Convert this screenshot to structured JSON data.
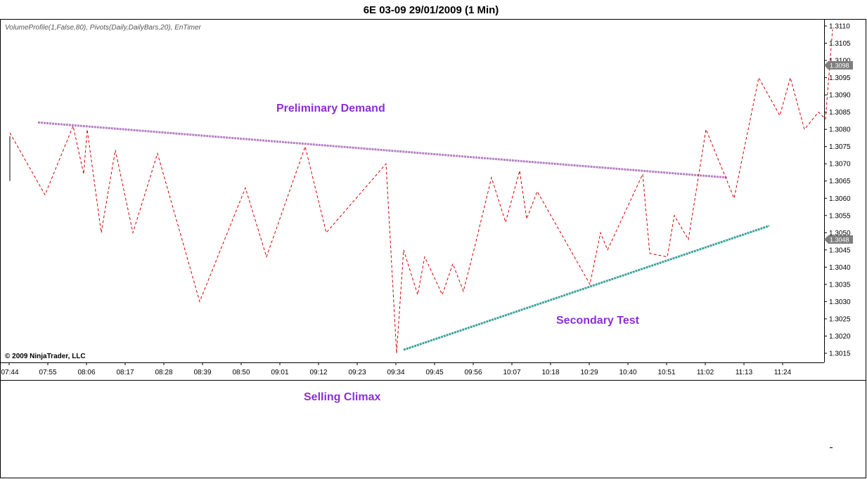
{
  "header": {
    "title": "6E 03-09  29/01/2009 (1 Min)",
    "indicators": "VolumeProfile(1,False,80), Pivots(Daily,DailyBars,20), EnTimer",
    "copyright": "© 2009 NinjaTrader, LLC"
  },
  "colors": {
    "price_line": "#d40000",
    "resistance_line": "#b67fc4",
    "support_line": "#3aa39a",
    "annotation": "#8b2fd6",
    "price_tag": "#7f7f7f"
  },
  "annotations": {
    "preliminary_demand": "Preliminary Demand",
    "secondary_test": "Secondary Test",
    "selling_climax": "Selling Climax"
  },
  "price_tags": {
    "upper": "1.3098",
    "lower": "1.3048"
  },
  "chart_data": {
    "type": "line",
    "title": "6E 03-09  29/01/2009 (1 Min)",
    "x_tick_labels": [
      "07:44",
      "07:55",
      "08:06",
      "08:17",
      "08:28",
      "08:39",
      "08:50",
      "09:01",
      "09:12",
      "09:23",
      "09:34",
      "09:45",
      "09:56",
      "10:07",
      "10:18",
      "10:29",
      "10:40",
      "10:51",
      "11:02",
      "11:13",
      "11:24"
    ],
    "y_tick_labels": [
      "1.3110",
      "1.3105",
      "1.3100",
      "1.3095",
      "1.3090",
      "1.3085",
      "1.3080",
      "1.3075",
      "1.3070",
      "1.3065",
      "1.3060",
      "1.3055",
      "1.3050",
      "1.3045",
      "1.3040",
      "1.3035",
      "1.3030",
      "1.3025",
      "1.3020",
      "1.3015"
    ],
    "ylim": [
      1.3014,
      1.3112
    ],
    "xlim": [
      0,
      235
    ],
    "grid": false,
    "series": [
      {
        "line_style": "dashed",
        "x": [
          0,
          10,
          18,
          21,
          22,
          26,
          30,
          35,
          42,
          54,
          67,
          73,
          84,
          90,
          107,
          110,
          112,
          116,
          118,
          123,
          126,
          129,
          132,
          137,
          141,
          145,
          147,
          150,
          165,
          168,
          170,
          180,
          182,
          187,
          189,
          193,
          198,
          206,
          213,
          219,
          222,
          226,
          230,
          232,
          234
        ],
        "y": [
          1.3079,
          1.3061,
          1.3081,
          1.3067,
          1.308,
          1.305,
          1.3074,
          1.305,
          1.3073,
          1.303,
          1.3063,
          1.3043,
          1.3075,
          1.305,
          1.307,
          1.3015,
          1.3045,
          1.3032,
          1.3043,
          1.3032,
          1.3041,
          1.3033,
          1.3045,
          1.3066,
          1.3053,
          1.3068,
          1.3054,
          1.3062,
          1.3035,
          1.305,
          1.3045,
          1.3067,
          1.3044,
          1.3043,
          1.3055,
          1.3048,
          1.308,
          1.306,
          1.3095,
          1.3084,
          1.3095,
          1.308,
          1.3085,
          1.3083,
          1.3109
        ]
      }
    ],
    "trendlines": [
      {
        "name": "resistance",
        "x": [
          8,
          204
        ],
        "y": [
          1.3082,
          1.3066
        ]
      },
      {
        "name": "support",
        "x": [
          112,
          216
        ],
        "y": [
          1.3016,
          1.3052
        ]
      }
    ],
    "first_bar_range": [
      1.3065,
      1.3078
    ]
  }
}
